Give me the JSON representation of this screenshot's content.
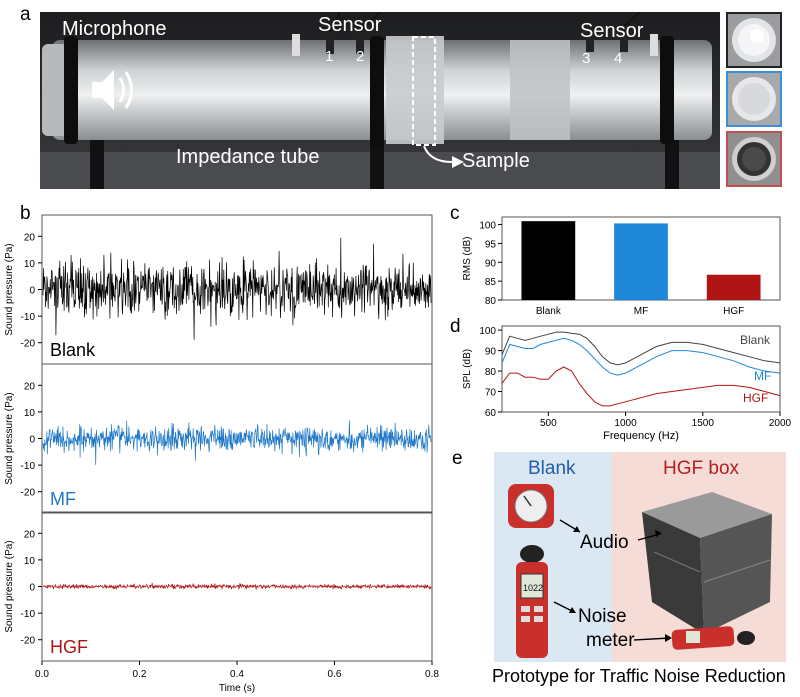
{
  "panels": {
    "a": "a",
    "b": "b",
    "c": "c",
    "d": "d",
    "e": "e"
  },
  "photo": {
    "labels": {
      "microphone": "Microphone",
      "sensor_left": "Sensor",
      "sensor_right": "Sensor",
      "tube": "Impedance tube",
      "sample": "Sample",
      "s1": "1",
      "s2": "2",
      "s3": "3",
      "s4": "4"
    },
    "thumb_colors": [
      "#222222",
      "#3b8fd6",
      "#c0504d"
    ]
  },
  "prototype": {
    "blank": "Blank",
    "hgf_box": "HGF box",
    "audio": "Audio",
    "noise": "Noise",
    "meter": "meter",
    "meter_reading": "1022",
    "caption": "Prototype for Traffic Noise Reduction",
    "colors": {
      "blank_bg": "#dbe7f3",
      "hgf_bg": "#f6dcd6",
      "hgf_text": "#b22222",
      "blank_text": "#1f5fa8"
    }
  },
  "chart_data": [
    {
      "type": "line",
      "id": "b",
      "xlabel": "Time (s)",
      "ylabel": "Sound pressure (Pa)",
      "xlim": [
        0,
        0.8
      ],
      "x_ticks": [
        "0.0",
        "0.2",
        "0.4",
        "0.6",
        "0.8"
      ],
      "ylim": [
        -28,
        28
      ],
      "y_ticks": [
        "20",
        "10",
        "0",
        "-10",
        "-20"
      ],
      "series": [
        {
          "name": "Blank",
          "color": "#000000",
          "amplitude_rms": 7.5,
          "peak": 24
        },
        {
          "name": "MF",
          "color": "#1f77c8",
          "amplitude_rms": 3.8,
          "peak": 12
        },
        {
          "name": "HGF",
          "color": "#b01515",
          "amplitude_rms": 0.6,
          "peak": 2
        }
      ]
    },
    {
      "type": "bar",
      "id": "c",
      "ylabel": "RMS (dB)",
      "categories": [
        "Blank",
        "MF",
        "HGF"
      ],
      "values": [
        100.9,
        100.3,
        86.7
      ],
      "ylim": [
        80,
        102
      ],
      "y_ticks": [
        "100",
        "95",
        "90",
        "85",
        "80"
      ],
      "colors": [
        "#000000",
        "#1f87d8",
        "#b01515"
      ]
    },
    {
      "type": "line",
      "id": "d",
      "xlabel": "Frequency (Hz)",
      "ylabel": "SPL (dB)",
      "xlim": [
        200,
        2000
      ],
      "x_ticks": [
        "500",
        "1000",
        "1500",
        "2000"
      ],
      "ylim": [
        60,
        102
      ],
      "y_ticks": [
        "100",
        "90",
        "80",
        "70",
        "60"
      ],
      "series": [
        {
          "name": "Blank",
          "color": "#444444",
          "x": [
            200,
            250,
            300,
            350,
            400,
            450,
            500,
            550,
            600,
            650,
            700,
            750,
            800,
            850,
            900,
            950,
            1000,
            1100,
            1200,
            1300,
            1400,
            1500,
            1600,
            1700,
            1800,
            1900,
            2000
          ],
          "y": [
            88,
            97,
            96,
            95,
            96,
            97,
            98,
            99,
            99,
            98.5,
            98,
            96,
            92,
            87,
            84,
            83,
            84,
            88,
            92,
            94,
            94,
            93,
            91,
            89,
            87,
            85,
            84
          ]
        },
        {
          "name": "MF",
          "color": "#1f87d8",
          "x": [
            200,
            250,
            300,
            350,
            400,
            450,
            500,
            550,
            600,
            650,
            700,
            750,
            800,
            850,
            900,
            950,
            1000,
            1100,
            1200,
            1300,
            1400,
            1500,
            1600,
            1700,
            1800,
            1900,
            2000
          ],
          "y": [
            84,
            93,
            92,
            91,
            91,
            93,
            94,
            95,
            96,
            95,
            93,
            90,
            86,
            82,
            79,
            78,
            79,
            83,
            87,
            90,
            90,
            89,
            87,
            85,
            82,
            80,
            79
          ]
        },
        {
          "name": "HGF",
          "color": "#b01515",
          "x": [
            200,
            250,
            300,
            350,
            400,
            450,
            500,
            550,
            600,
            650,
            700,
            750,
            800,
            850,
            900,
            950,
            1000,
            1100,
            1200,
            1300,
            1400,
            1500,
            1600,
            1700,
            1800,
            1900,
            2000
          ],
          "y": [
            74,
            79,
            79,
            77,
            77,
            76,
            76,
            80,
            82,
            80,
            74,
            69,
            65,
            63,
            63,
            64,
            65,
            67,
            69,
            70,
            71,
            72,
            73,
            73,
            72,
            70,
            68
          ]
        }
      ]
    }
  ]
}
